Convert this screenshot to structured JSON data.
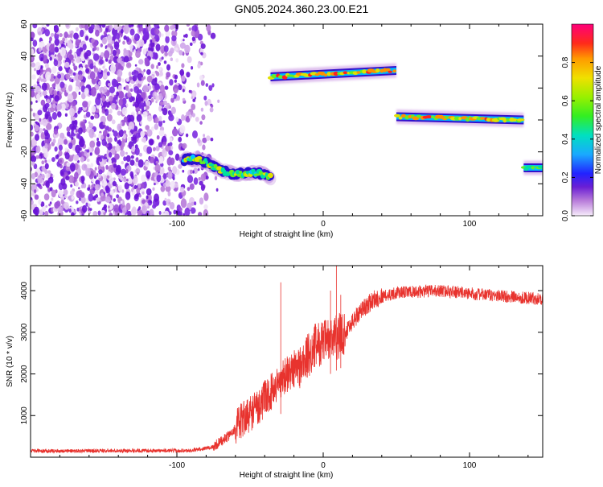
{
  "figure": {
    "title": "GN05.2024.360.23.00.E21"
  },
  "chart_data": [
    {
      "type": "heatmap",
      "xlabel": "Height of straight line (km)",
      "ylabel": "Frequency (Hz)",
      "xlim": [
        -200,
        150
      ],
      "ylim": [
        -60,
        60
      ],
      "xticks": [
        -100,
        0,
        100
      ],
      "yticks": [
        -60,
        -40,
        -20,
        0,
        20,
        40,
        60
      ],
      "colorbar": {
        "label": "Normalized spectral amplitude",
        "range": [
          0,
          1
        ],
        "ticks": [
          "0.0",
          "0.2",
          "0.4",
          "0.6",
          "0.8"
        ],
        "colormap": "rainbow"
      },
      "features": [
        {
          "name": "scatter",
          "x_range": [
            -200,
            -75
          ],
          "y_range": [
            -60,
            60
          ],
          "amplitude": 0.05
        },
        {
          "name": "band-1",
          "x_range": [
            -95,
            -36
          ],
          "y_start": -25,
          "y_end": -37,
          "amplitude": 0.45
        },
        {
          "name": "band-2",
          "x_range": [
            -36,
            50
          ],
          "y_start": 27,
          "y_end": 31,
          "amplitude": 0.8
        },
        {
          "name": "band-3",
          "x_range": [
            50,
            137
          ],
          "y_start": 2,
          "y_end": 0,
          "amplitude": 0.8
        },
        {
          "name": "band-4",
          "x_range": [
            137,
            150
          ],
          "y_start": -30,
          "y_end": -30,
          "amplitude": 0.4
        }
      ]
    },
    {
      "type": "line",
      "xlabel": "Height of straight line (km)",
      "ylabel": "SNR (10 * v/v)",
      "xlim": [
        -200,
        150
      ],
      "ylim": [
        0,
        4600
      ],
      "xticks": [
        -100,
        0,
        100
      ],
      "yticks": [
        1000,
        2000,
        3000,
        4000
      ],
      "color": "#e8332e",
      "profile": [
        {
          "x": -200,
          "y": 150
        },
        {
          "x": -90,
          "y": 160
        },
        {
          "x": -75,
          "y": 250
        },
        {
          "x": -65,
          "y": 500
        },
        {
          "x": -55,
          "y": 900
        },
        {
          "x": -45,
          "y": 1200
        },
        {
          "x": -35,
          "y": 1600
        },
        {
          "x": -25,
          "y": 2000
        },
        {
          "x": -15,
          "y": 2200
        },
        {
          "x": -5,
          "y": 2700
        },
        {
          "x": 5,
          "y": 2800
        },
        {
          "x": 15,
          "y": 3000
        },
        {
          "x": 25,
          "y": 3500
        },
        {
          "x": 35,
          "y": 3800
        },
        {
          "x": 50,
          "y": 3950
        },
        {
          "x": 80,
          "y": 4000
        },
        {
          "x": 110,
          "y": 3900
        },
        {
          "x": 130,
          "y": 3850
        },
        {
          "x": 150,
          "y": 3800
        }
      ],
      "spikes": [
        {
          "x": -29,
          "y": 4200
        },
        {
          "x": 5,
          "y": 4000
        },
        {
          "x": 9,
          "y": 4600
        },
        {
          "x": 12,
          "y": 3900
        }
      ]
    }
  ]
}
